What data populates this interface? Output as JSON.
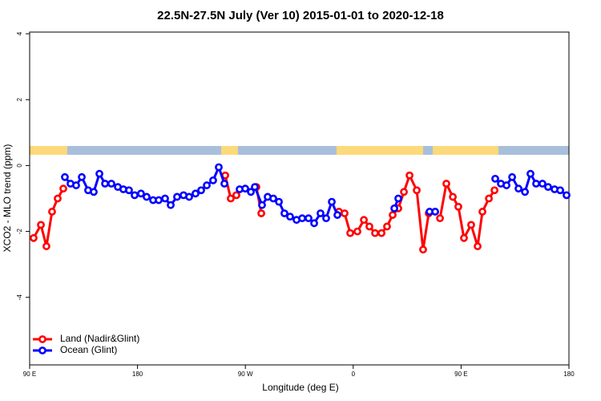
{
  "chart_data": {
    "type": "line",
    "title": "22.5N-27.5N July (Ver 10)   2015-01-01 to 2020-12-18",
    "xlabel": "Longitude (deg E)",
    "ylabel": "XCO2 - MLO trend (ppm)",
    "xlim": [
      90,
      540
    ],
    "ylim": [
      -6.05,
      4.05
    ],
    "xticks": [
      {
        "value": 90,
        "label": "90 E"
      },
      {
        "value": 180,
        "label": "180"
      },
      {
        "value": 270,
        "label": "90 W"
      },
      {
        "value": 360,
        "label": "0"
      },
      {
        "value": 450,
        "label": "90 E"
      },
      {
        "value": 540,
        "label": "180"
      }
    ],
    "yticks": [
      -4,
      -2,
      0,
      2,
      4
    ],
    "legend": "bottomleft",
    "series": [
      {
        "name": "Land (Nadir&Glint)",
        "color": "#ff0000",
        "x": [
          93.3,
          99.4,
          104,
          108.7,
          113.4,
          118.1,
          185,
          253.2,
          257.8,
          262.5,
          270,
          279.2,
          283.3,
          315,
          348.1,
          352.8,
          357.5,
          363.5,
          368.9,
          373.5,
          378.2,
          383.6,
          388.2,
          392.9,
          397.6,
          402.3,
          407,
          413,
          418.3,
          423,
          428,
          432.4,
          437.7,
          443.1,
          447.7,
          452.4,
          458.4,
          463.8,
          467.8,
          473.2,
          477.9
        ],
        "values": [
          -2.2,
          -1.8,
          -2.45,
          -1.4,
          -1.0,
          -0.7,
          null,
          -0.3,
          -1.0,
          -0.9,
          null,
          -0.65,
          -1.45,
          null,
          -1.4,
          -1.45,
          -2.05,
          -2.0,
          -1.65,
          -1.85,
          -2.05,
          -2.05,
          -1.85,
          -1.5,
          -1.3,
          -0.8,
          -0.3,
          -0.75,
          -2.55,
          -1.45,
          null,
          -1.6,
          -0.55,
          -0.95,
          -1.25,
          -2.2,
          -1.8,
          -2.45,
          -1.4,
          -1.0,
          -0.75
        ]
      },
      {
        "name": "Ocean (Glint)",
        "color": "#0000ff",
        "x": [
          119.4,
          124.1,
          128.8,
          133.5,
          138.8,
          143.5,
          148.2,
          152.9,
          158.2,
          163.6,
          168.2,
          172.9,
          177.6,
          182.9,
          187.6,
          193,
          197.7,
          203,
          207.7,
          213,
          218.4,
          223.1,
          228.4,
          233.1,
          237.8,
          243.1,
          247.8,
          252.5,
          259,
          265.2,
          269.9,
          274.6,
          277.9,
          283.9,
          288.6,
          293.3,
          298,
          302.6,
          307.3,
          312.7,
          317.4,
          322.7,
          327.4,
          332.7,
          337.4,
          342.1,
          346.8,
          370,
          394.3,
          397.6,
          410,
          423.7,
          428.4,
          450,
          478.5,
          483.2,
          487.9,
          492.6,
          497.9,
          503.3,
          507.9,
          512.6,
          517.9,
          522.6,
          528,
          532.7,
          538
        ],
        "values": [
          -0.35,
          -0.55,
          -0.6,
          -0.35,
          -0.75,
          -0.8,
          -0.25,
          -0.55,
          -0.55,
          -0.65,
          -0.72,
          -0.75,
          -0.9,
          -0.85,
          -0.95,
          -1.05,
          -1.05,
          -1.0,
          -1.2,
          -0.95,
          -0.9,
          -0.95,
          -0.85,
          -0.75,
          -0.6,
          -0.45,
          -0.05,
          -0.55,
          null,
          -0.72,
          -0.7,
          -0.8,
          -0.65,
          -1.2,
          -0.95,
          -1.0,
          -1.1,
          -1.45,
          -1.55,
          -1.65,
          -1.6,
          -1.6,
          -1.75,
          -1.45,
          -1.6,
          -1.1,
          -1.5,
          null,
          -1.3,
          -1.0,
          null,
          -1.4,
          -1.4,
          null,
          -0.4,
          -0.55,
          -0.6,
          -0.35,
          -0.7,
          -0.8,
          -0.25,
          -0.55,
          -0.55,
          -0.65,
          -0.72,
          -0.75,
          -0.9
        ]
      }
    ]
  }
}
